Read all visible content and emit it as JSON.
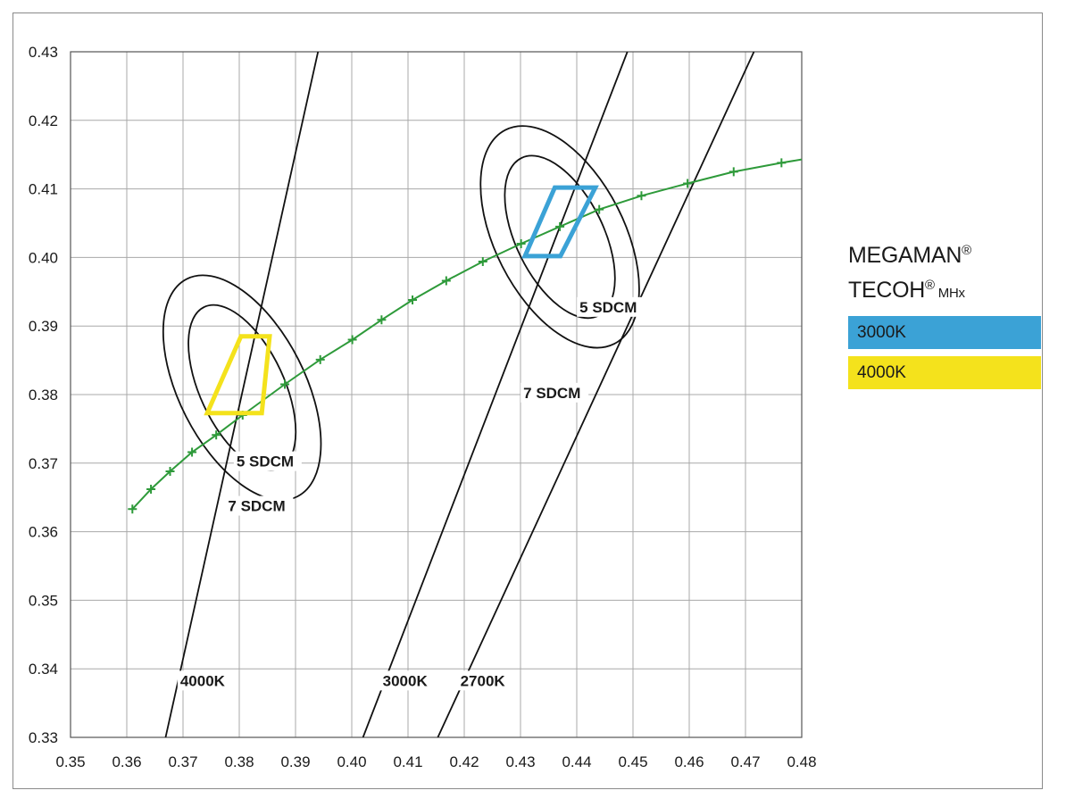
{
  "chart_data": {
    "type": "line",
    "xlim": [
      0.35,
      0.48
    ],
    "ylim": [
      0.33,
      0.43
    ],
    "x_ticks": [
      "0.35",
      "0.36",
      "0.37",
      "0.38",
      "0.39",
      "0.40",
      "0.41",
      "0.42",
      "0.43",
      "0.44",
      "0.45",
      "0.46",
      "0.47",
      "0.48"
    ],
    "y_ticks": [
      "0.33",
      "0.34",
      "0.35",
      "0.36",
      "0.37",
      "0.38",
      "0.39",
      "0.40",
      "0.41",
      "0.42",
      "0.43"
    ],
    "grid": true,
    "planckian_locus": {
      "color": "#2e9a3a",
      "points": [
        [
          0.361,
          0.3633
        ],
        [
          0.3643,
          0.3662
        ],
        [
          0.3677,
          0.3688
        ],
        [
          0.3716,
          0.3716
        ],
        [
          0.3759,
          0.3741
        ],
        [
          0.3806,
          0.377
        ],
        [
          0.3881,
          0.3815
        ],
        [
          0.3944,
          0.3851
        ],
        [
          0.4001,
          0.388
        ],
        [
          0.4053,
          0.3909
        ],
        [
          0.4108,
          0.3938
        ],
        [
          0.4168,
          0.3966
        ],
        [
          0.4233,
          0.3994
        ],
        [
          0.4301,
          0.402
        ],
        [
          0.437,
          0.4045
        ],
        [
          0.444,
          0.407
        ],
        [
          0.4515,
          0.409
        ],
        [
          0.4597,
          0.4108
        ],
        [
          0.4679,
          0.4125
        ],
        [
          0.4764,
          0.4138
        ],
        [
          0.48,
          0.4143
        ]
      ]
    },
    "isotherms": [
      {
        "label": "4000K",
        "points": [
          [
            0.3669,
            0.33
          ],
          [
            0.394,
            0.43
          ]
        ],
        "label_at": [
          0.3695,
          0.3375
        ]
      },
      {
        "label": "3000K",
        "points": [
          [
            0.402,
            0.33
          ],
          [
            0.449,
            0.43
          ]
        ],
        "label_at": [
          0.4055,
          0.3375
        ]
      },
      {
        "label": "2700K",
        "points": [
          [
            0.4153,
            0.33
          ],
          [
            0.4715,
            0.43
          ]
        ],
        "label_at": [
          0.4193,
          0.3375
        ]
      }
    ],
    "ellipses": [
      {
        "label": "5 SDCM",
        "center": [
          0.3805,
          0.381
        ],
        "rx": 0.0075,
        "ry": 0.013,
        "rotate": -25,
        "label_at": [
          0.3795,
          0.3695
        ]
      },
      {
        "label": "7 SDCM",
        "center": [
          0.3805,
          0.381
        ],
        "rx": 0.0112,
        "ry": 0.0178,
        "rotate": -27,
        "label_at": [
          0.378,
          0.363
        ]
      },
      {
        "label": "5 SDCM",
        "center": [
          0.437,
          0.403
        ],
        "rx": 0.0078,
        "ry": 0.0128,
        "rotate": -26,
        "label_at": [
          0.4405,
          0.392
        ]
      },
      {
        "label": "7 SDCM",
        "center": [
          0.437,
          0.403
        ],
        "rx": 0.0115,
        "ry": 0.0175,
        "rotate": -27,
        "label_at": [
          0.4305,
          0.3795
        ]
      }
    ],
    "series": [
      {
        "name": "3000K",
        "color": "#3ba2d6",
        "points": [
          [
            0.4308,
            0.4002
          ],
          [
            0.4371,
            0.4002
          ],
          [
            0.4433,
            0.4102
          ],
          [
            0.4361,
            0.4102
          ]
        ]
      },
      {
        "name": "4000K",
        "color": "#f4e21c",
        "points": [
          [
            0.3743,
            0.3773
          ],
          [
            0.384,
            0.3773
          ],
          [
            0.3854,
            0.3885
          ],
          [
            0.3803,
            0.3885
          ]
        ]
      }
    ]
  },
  "legend": {
    "brand_line1": "MEGAMAN",
    "brand_line2": "TECOH",
    "registered": "®",
    "suffix": "MHx",
    "items": [
      {
        "label": "3000K",
        "color": "#3ba2d6"
      },
      {
        "label": "4000K",
        "color": "#f4e21c"
      }
    ]
  }
}
